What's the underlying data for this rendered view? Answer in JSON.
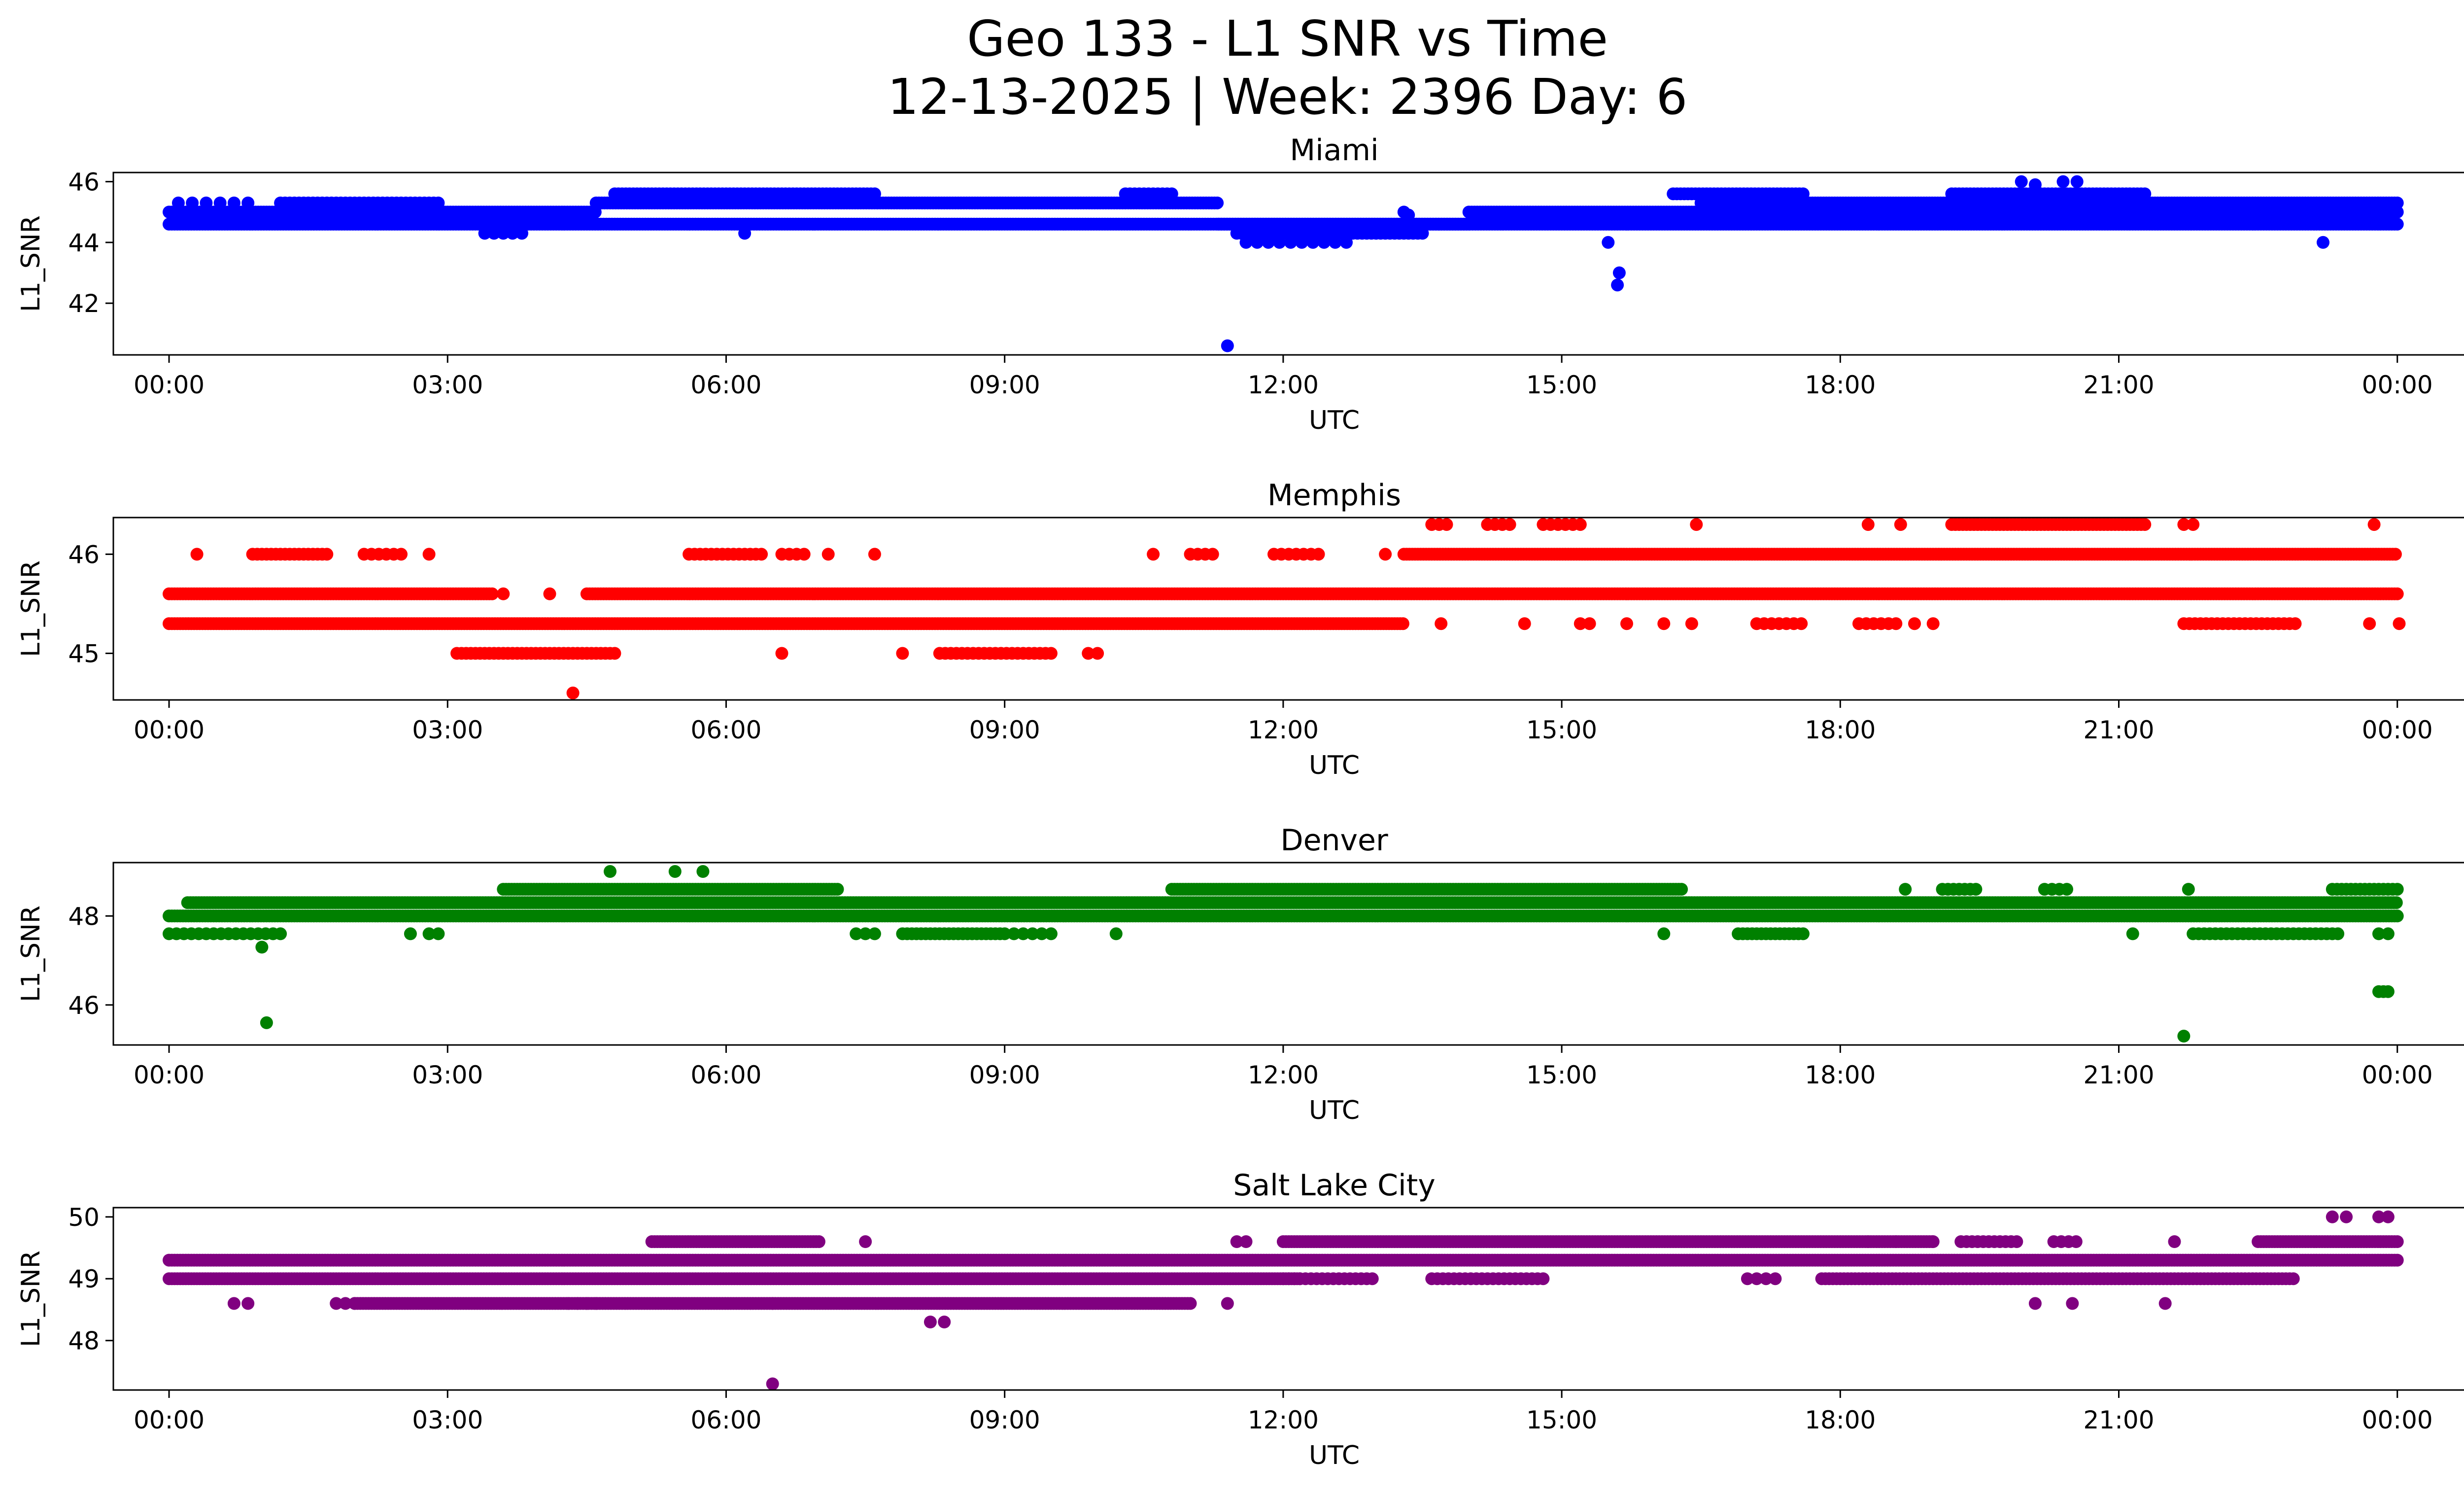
{
  "figure": {
    "title_line1": "Geo 133 - L1 SNR vs Time",
    "title_line2": "12-13-2025 | Week: 2396 Day: 6"
  },
  "chart_data": [
    {
      "type": "scatter",
      "title": "Miami",
      "xlabel": "UTC",
      "ylabel": "L1_SNR",
      "color": "#0000ff",
      "xlim": [
        -0.6,
        25.7
      ],
      "ylim": [
        40.3,
        46.3
      ],
      "xticks": [
        "00:00",
        "03:00",
        "06:00",
        "09:00",
        "12:00",
        "15:00",
        "18:00",
        "21:00",
        "00:00"
      ],
      "yticks": [
        42,
        44,
        46
      ],
      "segments": [
        {
          "x": [
            0.0,
            24.0
          ],
          "y": 44.6,
          "step": 0.03
        },
        {
          "x": [
            0.0,
            4.6
          ],
          "y": 45.0,
          "step": 0.03
        },
        {
          "x": [
            4.6,
            11.3
          ],
          "y": 45.3,
          "step": 0.03
        },
        {
          "x": [
            11.3,
            14.0
          ],
          "y": 44.6,
          "step": 0.03
        },
        {
          "x": [
            11.5,
            13.5
          ],
          "y": 44.3,
          "step": 0.05
        },
        {
          "x": [
            14.0,
            19.2
          ],
          "y": 45.0,
          "step": 0.03
        },
        {
          "x": [
            16.5,
            24.0
          ],
          "y": 45.3,
          "step": 0.03
        },
        {
          "x": [
            19.2,
            24.0
          ],
          "y": 45.0,
          "step": 0.03
        }
      ],
      "clusters": [
        {
          "x": [
            0.1,
            0.9
          ],
          "y": 45.3,
          "step": 0.15
        },
        {
          "x": [
            1.2,
            2.9
          ],
          "y": 45.3,
          "step": 0.05
        },
        {
          "x": [
            4.8,
            7.6
          ],
          "y": 45.6,
          "step": 0.04
        },
        {
          "x": [
            10.3,
            10.8
          ],
          "y": 45.6,
          "step": 0.05
        },
        {
          "x": [
            11.6,
            12.7
          ],
          "y": 44.0,
          "step": 0.12
        },
        {
          "x": [
            16.2,
            17.6
          ],
          "y": 45.6,
          "step": 0.04
        },
        {
          "x": [
            19.2,
            21.3
          ],
          "y": 45.6,
          "step": 0.04
        },
        {
          "x": [
            21.6,
            23.4
          ],
          "y": 45.0,
          "step": 0.06
        },
        {
          "x": [
            3.4,
            3.8
          ],
          "y": 44.3,
          "step": 0.1
        }
      ],
      "points": [
        {
          "x": 11.4,
          "y": 40.6
        },
        {
          "x": 15.6,
          "y": 42.6
        },
        {
          "x": 15.62,
          "y": 43.0
        },
        {
          "x": 15.5,
          "y": 44.0
        },
        {
          "x": 6.2,
          "y": 44.3
        },
        {
          "x": 23.2,
          "y": 44.0
        },
        {
          "x": 19.95,
          "y": 46.0
        },
        {
          "x": 20.4,
          "y": 46.0
        },
        {
          "x": 20.55,
          "y": 46.0
        },
        {
          "x": 20.1,
          "y": 45.9
        },
        {
          "x": 13.3,
          "y": 45.0
        },
        {
          "x": 13.35,
          "y": 44.9
        }
      ]
    },
    {
      "type": "scatter",
      "title": "Memphis",
      "xlabel": "UTC",
      "ylabel": "L1_SNR",
      "color": "#ff0000",
      "xlim": [
        -0.6,
        25.7
      ],
      "ylim": [
        44.53,
        46.37
      ],
      "xticks": [
        "00:00",
        "03:00",
        "06:00",
        "09:00",
        "12:00",
        "15:00",
        "18:00",
        "21:00",
        "00:00"
      ],
      "yticks": [
        45,
        46
      ],
      "segments": [
        {
          "x": [
            0.0,
            13.3
          ],
          "y": 45.3,
          "step": 0.03
        },
        {
          "x": [
            0.0,
            3.5
          ],
          "y": 45.6,
          "step": 0.03
        },
        {
          "x": [
            4.5,
            24.0
          ],
          "y": 45.6,
          "step": 0.03
        },
        {
          "x": [
            13.3,
            24.0
          ],
          "y": 46.0,
          "step": 0.03
        }
      ],
      "clusters": [
        {
          "x": [
            0.9,
            1.7
          ],
          "y": 46.0,
          "step": 0.05
        },
        {
          "x": [
            2.1,
            2.5
          ],
          "y": 46.0,
          "step": 0.08
        },
        {
          "x": [
            5.6,
            6.4
          ],
          "y": 46.0,
          "step": 0.06
        },
        {
          "x": [
            6.6,
            6.9
          ],
          "y": 46.0,
          "step": 0.08
        },
        {
          "x": [
            11.0,
            11.3
          ],
          "y": 46.0,
          "step": 0.08
        },
        {
          "x": [
            11.9,
            12.4
          ],
          "y": 46.0,
          "step": 0.08
        },
        {
          "x": [
            3.1,
            4.8
          ],
          "y": 45.0,
          "step": 0.05
        },
        {
          "x": [
            8.3,
            9.5
          ],
          "y": 45.0,
          "step": 0.06
        },
        {
          "x": [
            13.6,
            13.8
          ],
          "y": 46.3,
          "step": 0.08
        },
        {
          "x": [
            14.2,
            14.5
          ],
          "y": 46.3,
          "step": 0.08
        },
        {
          "x": [
            14.8,
            15.2
          ],
          "y": 46.3,
          "step": 0.08
        },
        {
          "x": [
            19.2,
            21.3
          ],
          "y": 46.3,
          "step": 0.04
        },
        {
          "x": [
            17.1,
            17.6
          ],
          "y": 45.3,
          "step": 0.08
        },
        {
          "x": [
            18.2,
            18.6
          ],
          "y": 45.3,
          "step": 0.08
        },
        {
          "x": [
            21.7,
            22.9
          ],
          "y": 45.3,
          "step": 0.06
        },
        {
          "x": [
            24.02,
            24.02
          ],
          "y": 45.3,
          "step": 1
        }
      ],
      "points": [
        {
          "x": 0.3,
          "y": 46.0
        },
        {
          "x": 2.8,
          "y": 46.0
        },
        {
          "x": 7.6,
          "y": 46.0
        },
        {
          "x": 7.1,
          "y": 46.0
        },
        {
          "x": 10.6,
          "y": 46.0
        },
        {
          "x": 13.1,
          "y": 46.0
        },
        {
          "x": 3.6,
          "y": 45.6
        },
        {
          "x": 4.1,
          "y": 45.6
        },
        {
          "x": 4.35,
          "y": 44.6
        },
        {
          "x": 6.6,
          "y": 45.0
        },
        {
          "x": 7.9,
          "y": 45.0
        },
        {
          "x": 9.9,
          "y": 45.0
        },
        {
          "x": 10.0,
          "y": 45.0
        },
        {
          "x": 13.7,
          "y": 45.3
        },
        {
          "x": 14.6,
          "y": 45.3
        },
        {
          "x": 15.2,
          "y": 45.3
        },
        {
          "x": 15.3,
          "y": 45.3
        },
        {
          "x": 15.7,
          "y": 45.3
        },
        {
          "x": 16.1,
          "y": 45.3
        },
        {
          "x": 16.4,
          "y": 45.3
        },
        {
          "x": 16.45,
          "y": 46.3
        },
        {
          "x": 18.3,
          "y": 46.3
        },
        {
          "x": 18.65,
          "y": 46.3
        },
        {
          "x": 18.8,
          "y": 45.3
        },
        {
          "x": 19.0,
          "y": 45.3
        },
        {
          "x": 21.7,
          "y": 46.3
        },
        {
          "x": 21.8,
          "y": 46.3
        },
        {
          "x": 23.75,
          "y": 46.3
        },
        {
          "x": 23.7,
          "y": 45.3
        }
      ]
    },
    {
      "type": "scatter",
      "title": "Denver",
      "xlabel": "UTC",
      "ylabel": "L1_SNR",
      "color": "#008000",
      "xlim": [
        -0.6,
        25.7
      ],
      "ylim": [
        45.1,
        49.2
      ],
      "xticks": [
        "00:00",
        "03:00",
        "06:00",
        "09:00",
        "12:00",
        "15:00",
        "18:00",
        "21:00",
        "00:00"
      ],
      "yticks": [
        46,
        48
      ],
      "segments": [
        {
          "x": [
            0.0,
            24.0
          ],
          "y": 48.0,
          "step": 0.03
        },
        {
          "x": [
            0.2,
            24.0
          ],
          "y": 48.3,
          "step": 0.03
        },
        {
          "x": [
            3.6,
            7.2
          ],
          "y": 48.6,
          "step": 0.03
        },
        {
          "x": [
            10.8,
            16.3
          ],
          "y": 48.6,
          "step": 0.03
        }
      ],
      "clusters": [
        {
          "x": [
            0.0,
            1.2
          ],
          "y": 47.6,
          "step": 0.08
        },
        {
          "x": [
            7.4,
            7.6
          ],
          "y": 47.6,
          "step": 0.1
        },
        {
          "x": [
            7.9,
            9.0
          ],
          "y": 47.6,
          "step": 0.05
        },
        {
          "x": [
            9.1,
            9.5
          ],
          "y": 47.6,
          "step": 0.1
        },
        {
          "x": [
            16.9,
            17.6
          ],
          "y": 47.6,
          "step": 0.05
        },
        {
          "x": [
            21.8,
            23.4
          ],
          "y": 47.6,
          "step": 0.06
        },
        {
          "x": [
            19.1,
            19.5
          ],
          "y": 48.6,
          "step": 0.06
        },
        {
          "x": [
            20.2,
            20.5
          ],
          "y": 48.6,
          "step": 0.08
        },
        {
          "x": [
            23.3,
            24.0
          ],
          "y": 48.6,
          "step": 0.05
        },
        {
          "x": [
            23.8,
            23.9
          ],
          "y": 46.3,
          "step": 0.05
        }
      ],
      "points": [
        {
          "x": 1.05,
          "y": 45.6
        },
        {
          "x": 1.0,
          "y": 47.3
        },
        {
          "x": 2.6,
          "y": 47.6
        },
        {
          "x": 2.8,
          "y": 47.6
        },
        {
          "x": 2.9,
          "y": 47.6
        },
        {
          "x": 4.75,
          "y": 49.0
        },
        {
          "x": 5.45,
          "y": 49.0
        },
        {
          "x": 5.75,
          "y": 49.0
        },
        {
          "x": 10.2,
          "y": 47.6
        },
        {
          "x": 16.1,
          "y": 47.6
        },
        {
          "x": 18.7,
          "y": 48.6
        },
        {
          "x": 21.15,
          "y": 47.6
        },
        {
          "x": 21.7,
          "y": 45.3
        },
        {
          "x": 21.75,
          "y": 48.6
        },
        {
          "x": 23.8,
          "y": 47.6
        },
        {
          "x": 23.9,
          "y": 47.6
        }
      ]
    },
    {
      "type": "scatter",
      "title": "Salt Lake City",
      "xlabel": "UTC",
      "ylabel": "L1_SNR",
      "color": "#800080",
      "xlim": [
        -0.6,
        25.7
      ],
      "ylim": [
        47.2,
        50.15
      ],
      "xticks": [
        "00:00",
        "03:00",
        "06:00",
        "09:00",
        "12:00",
        "15:00",
        "18:00",
        "21:00",
        "00:00"
      ],
      "yticks": [
        48,
        49,
        50
      ],
      "segments": [
        {
          "x": [
            0.0,
            24.0
          ],
          "y": 49.3,
          "step": 0.03
        },
        {
          "x": [
            0.0,
            12.2
          ],
          "y": 49.0,
          "step": 0.03
        },
        {
          "x": [
            5.2,
            7.0
          ],
          "y": 49.6,
          "step": 0.03
        },
        {
          "x": [
            12.0,
            19.0
          ],
          "y": 49.6,
          "step": 0.03
        },
        {
          "x": [
            2.0,
            11.0
          ],
          "y": 48.6,
          "step": 0.03
        },
        {
          "x": [
            22.5,
            24.0
          ],
          "y": 49.6,
          "step": 0.03
        }
      ],
      "clusters": [
        {
          "x": [
            0.7,
            0.9
          ],
          "y": 48.6,
          "step": 0.15
        },
        {
          "x": [
            1.8,
            2.0
          ],
          "y": 48.6,
          "step": 0.1
        },
        {
          "x": [
            4.3,
            4.6
          ],
          "y": 48.6,
          "step": 0.1
        },
        {
          "x": [
            12.0,
            13.0
          ],
          "y": 49.0,
          "step": 0.06
        },
        {
          "x": [
            13.6,
            14.8
          ],
          "y": 49.0,
          "step": 0.06
        },
        {
          "x": [
            17.0,
            17.3
          ],
          "y": 49.0,
          "step": 0.1
        },
        {
          "x": [
            17.8,
            22.9
          ],
          "y": 49.0,
          "step": 0.04
        },
        {
          "x": [
            19.3,
            19.9
          ],
          "y": 49.6,
          "step": 0.06
        },
        {
          "x": [
            20.3,
            20.6
          ],
          "y": 49.6,
          "step": 0.08
        },
        {
          "x": [
            11.5,
            11.6
          ],
          "y": 49.6,
          "step": 0.1
        },
        {
          "x": [
            8.2,
            8.35
          ],
          "y": 48.3,
          "step": 0.15
        },
        {
          "x": [
            23.3,
            23.45
          ],
          "y": 50.0,
          "step": 0.15
        },
        {
          "x": [
            23.8,
            23.95
          ],
          "y": 50.0,
          "step": 0.1
        }
      ],
      "points": [
        {
          "x": 6.5,
          "y": 47.3
        },
        {
          "x": 6.5,
          "y": 48.6
        },
        {
          "x": 7.5,
          "y": 49.6
        },
        {
          "x": 11.4,
          "y": 48.6
        },
        {
          "x": 20.1,
          "y": 48.6
        },
        {
          "x": 20.5,
          "y": 48.6
        },
        {
          "x": 21.5,
          "y": 48.6
        },
        {
          "x": 21.6,
          "y": 49.6
        },
        {
          "x": 18.3,
          "y": 49.6
        },
        {
          "x": 18.6,
          "y": 49.6
        },
        {
          "x": 19.0,
          "y": 49.6
        }
      ]
    }
  ]
}
